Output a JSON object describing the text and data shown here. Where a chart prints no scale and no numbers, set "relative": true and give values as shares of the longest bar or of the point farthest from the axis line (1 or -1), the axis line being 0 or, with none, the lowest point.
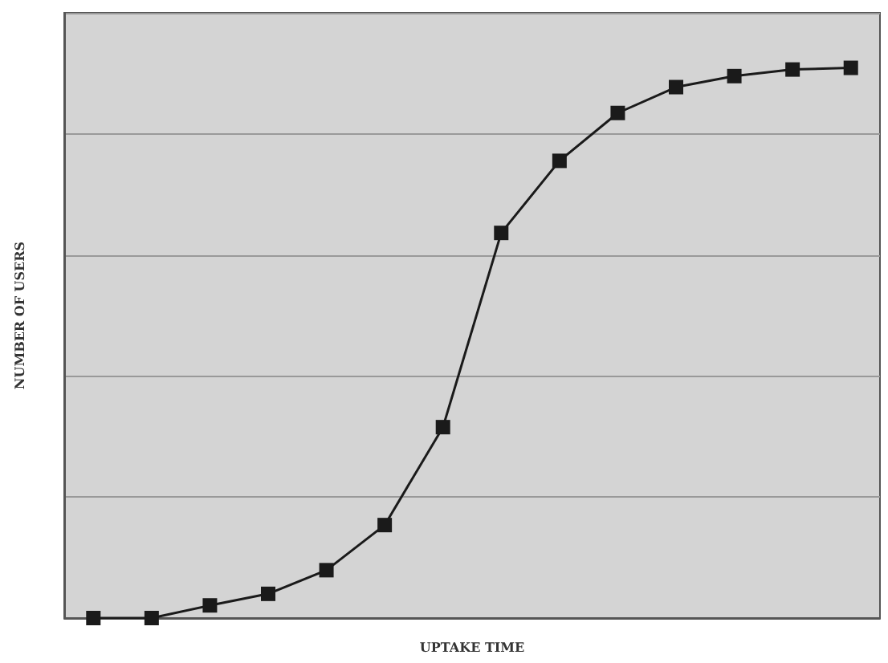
{
  "chart_data": {
    "type": "line",
    "xlabel": "UPTAKE TIME",
    "ylabel": "NUMBER OF USERS",
    "relative": true,
    "grid": "y",
    "marker": "square",
    "line_style": "solid",
    "categories": [
      null,
      null,
      null,
      null,
      null,
      null,
      null,
      null,
      null,
      null,
      null,
      null,
      null,
      null
    ],
    "series": [
      {
        "color": "#1a1a1a",
        "values": [
          0,
          0,
          0.023,
          0.044,
          0.087,
          0.169,
          0.347,
          0.7,
          0.831,
          0.918,
          0.965,
          0.985,
          0.997,
          1
        ]
      }
    ]
  }
}
